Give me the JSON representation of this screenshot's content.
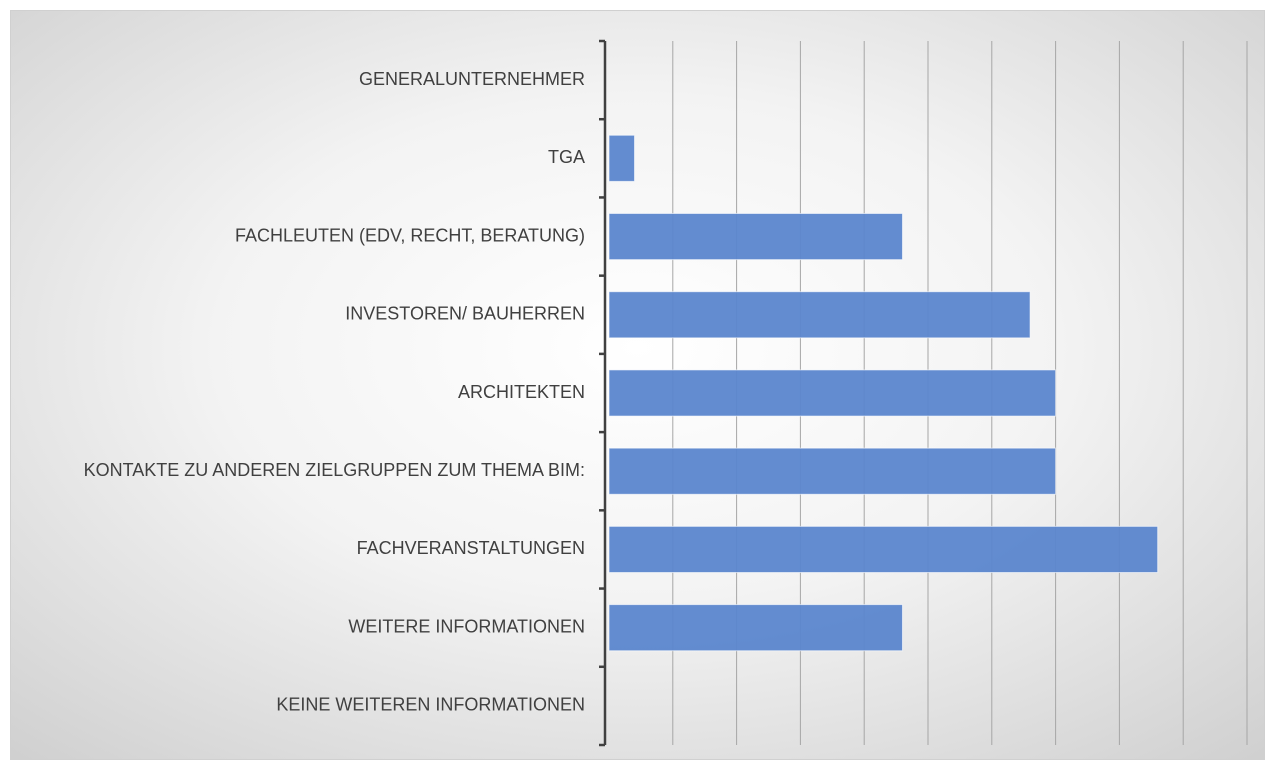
{
  "chart_data": {
    "type": "bar",
    "orientation": "horizontal",
    "categories": [
      "GENERALUNTERNEHMER",
      "TGA",
      "FACHLEUTEN (EDV, RECHT, BERATUNG)",
      "INVESTOREN/ BAUHERREN",
      "ARCHITEKTEN",
      "KONTAKTE ZU ANDEREN ZIELGRUPPEN ZUM THEMA BIM:",
      "FACHVERANSTALTUNGEN",
      "WEITERE INFORMATIONEN",
      "KEINE WEITEREN INFORMATIONEN"
    ],
    "values": [
      0,
      0.4,
      4.6,
      6.6,
      7,
      7,
      8.6,
      4.6,
      0
    ],
    "color": "#5b86cd",
    "xlim": [
      0,
      10
    ],
    "xticks": [
      0,
      1,
      2,
      3,
      4,
      5,
      6,
      7,
      8,
      9,
      10
    ],
    "grid": true
  }
}
